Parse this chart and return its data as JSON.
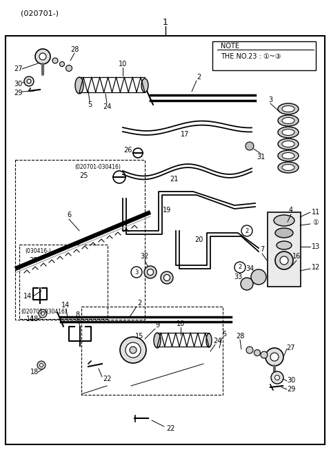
{
  "title": "(020701-)",
  "part_number": "1",
  "note_line1": "NOTE",
  "note_line2": "THE NO.23 : ①~③",
  "background": "#ffffff",
  "border_color": "#000000",
  "text_color": "#000000",
  "figsize": [
    4.8,
    6.56
  ],
  "dpi": 100
}
